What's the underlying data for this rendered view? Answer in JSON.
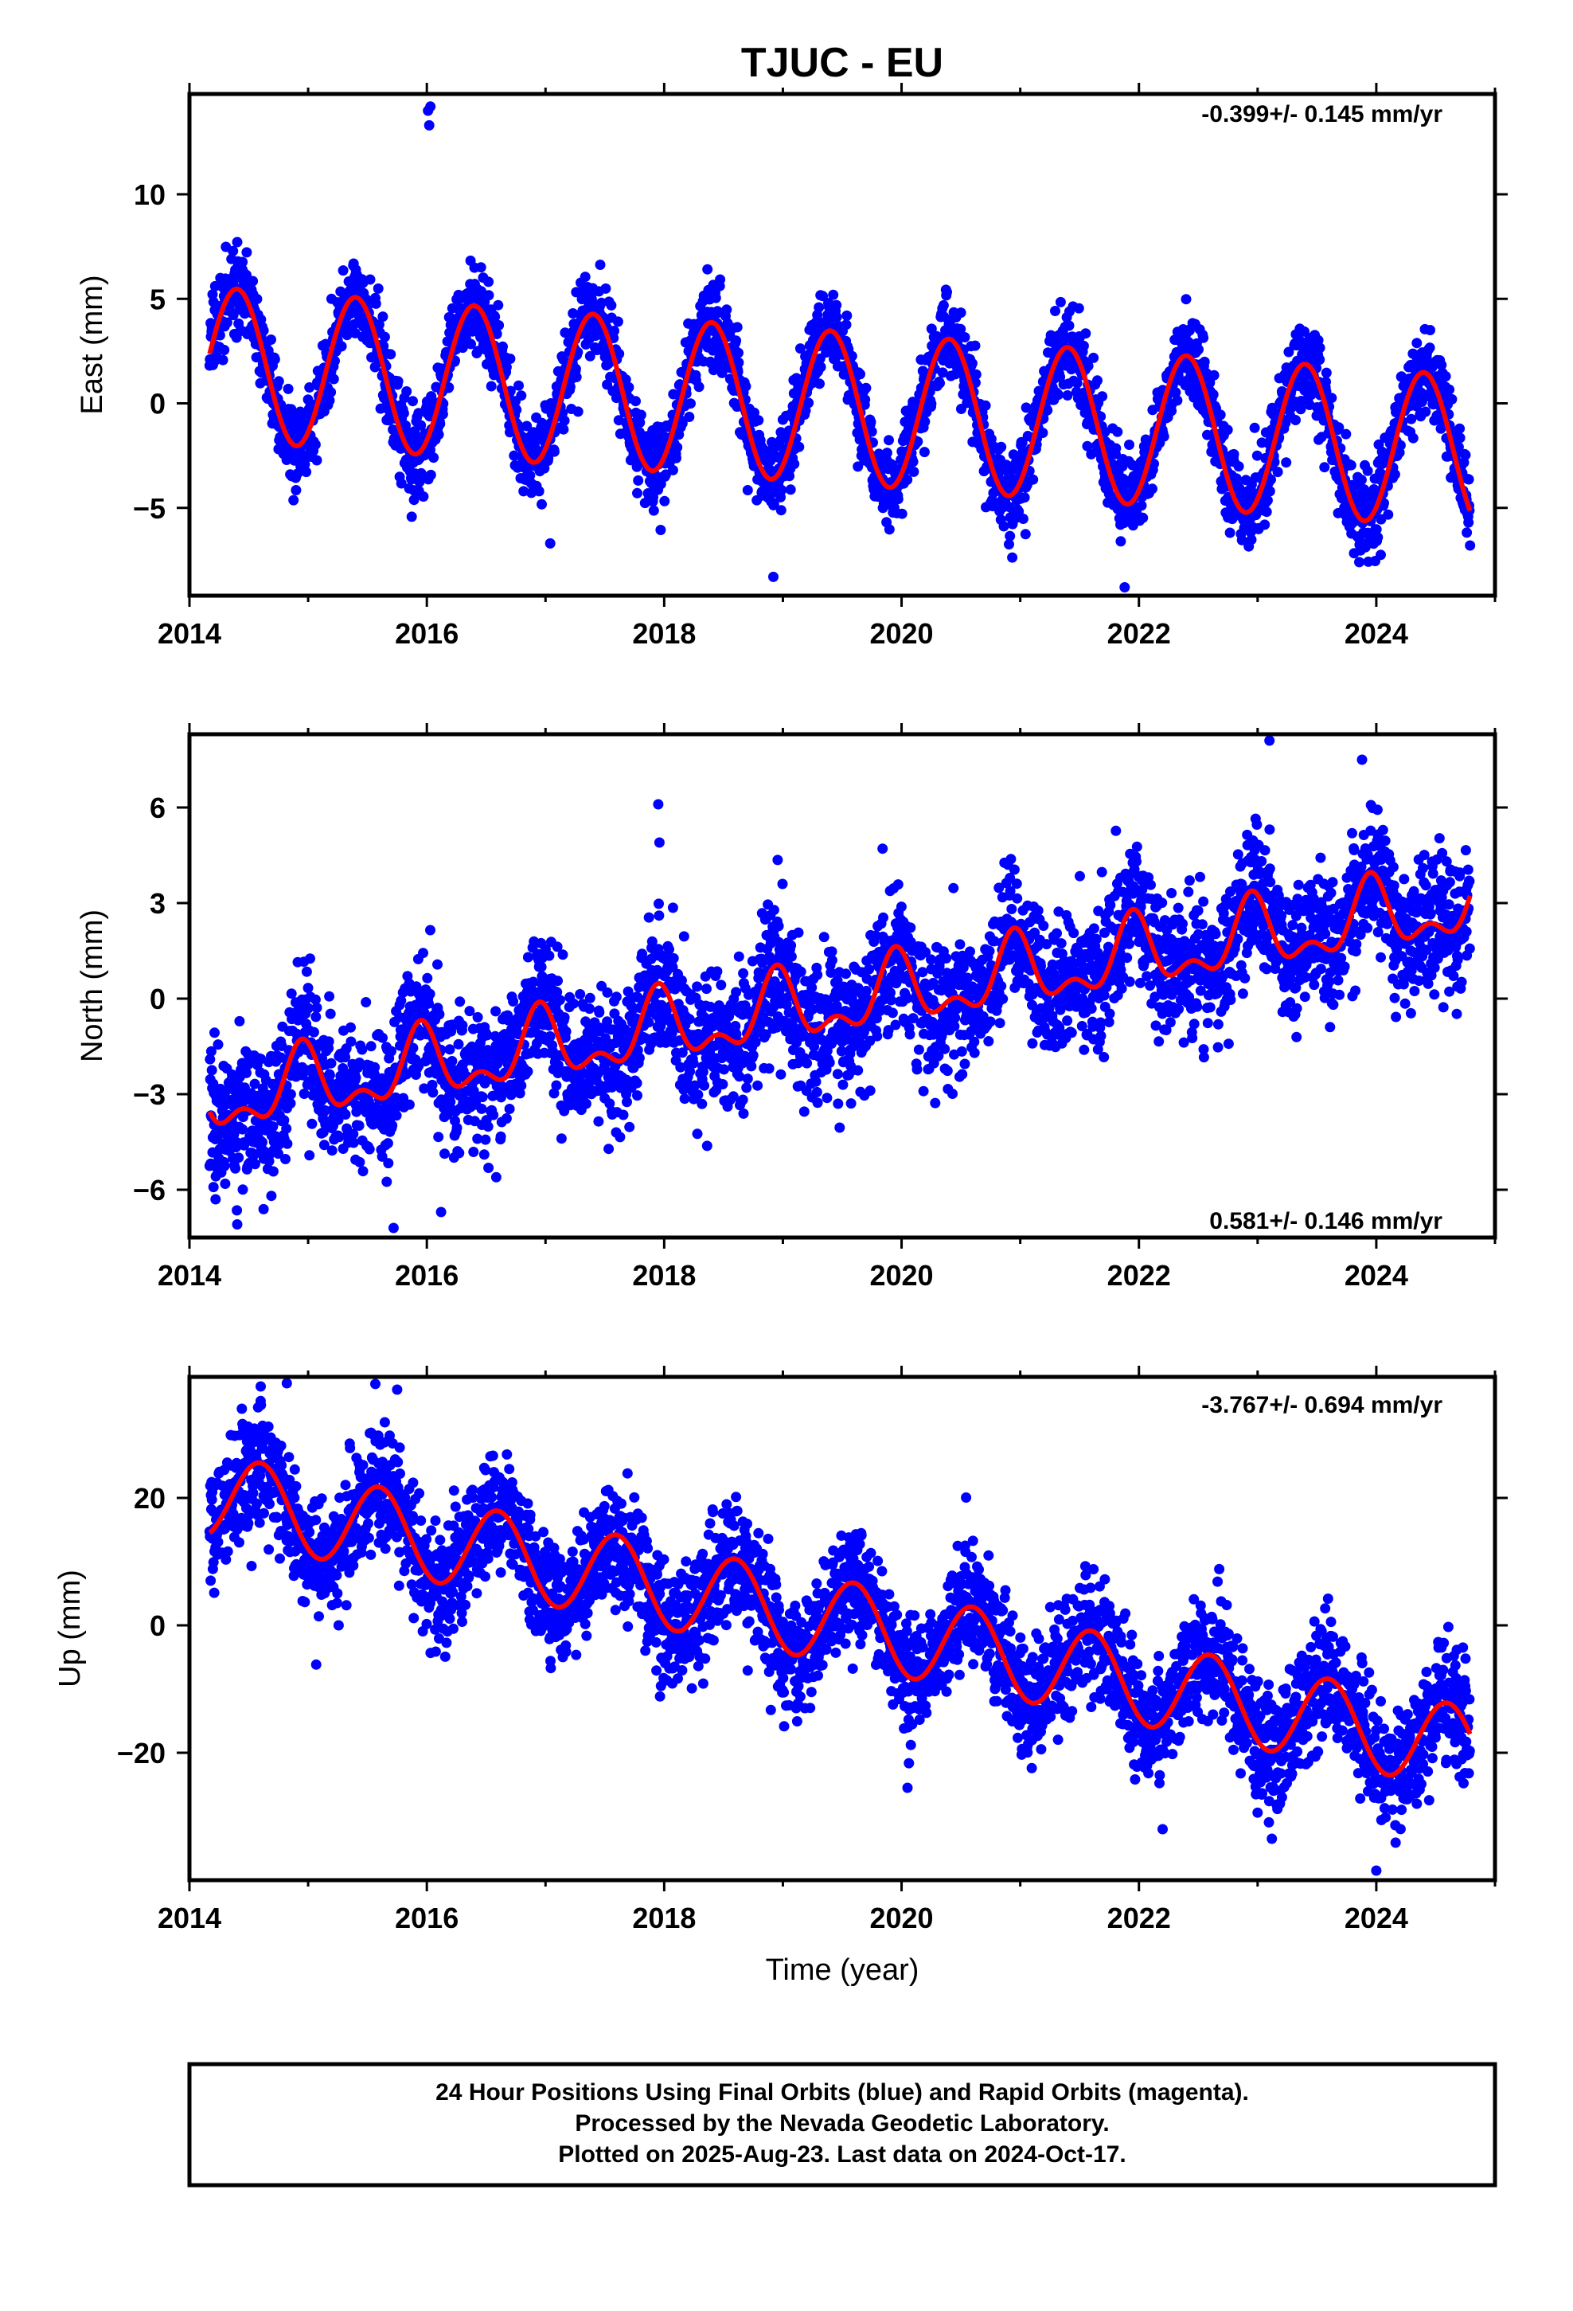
{
  "title": "TJUC - EU",
  "footer": {
    "line1": "24 Hour Positions Using Final Orbits (blue) and Rapid Orbits (magenta).",
    "line2": "Processed by the Nevada Geodetic Laboratory.",
    "line3": "Plotted on 2025-Aug-23. Last data on 2024-Oct-17."
  },
  "colors": {
    "points": "#0000ff",
    "fit": "#ff0000",
    "frame": "#000000"
  },
  "chart_data": [
    {
      "type": "scatter",
      "title": "TJUC - EU",
      "ylabel": "East (mm)",
      "xlabel": "",
      "xlim": [
        2014.0,
        2025.0
      ],
      "ylim": [
        -9.2,
        14.8
      ],
      "xticks": [
        2014,
        2016,
        2018,
        2020,
        2022,
        2024
      ],
      "yticks": [
        -5,
        0,
        5,
        10
      ],
      "ytick_labels": [
        "−5",
        "0",
        "5",
        "10"
      ],
      "rate": "-0.399+/- 0.145 mm/yr",
      "rate_position": "top-right",
      "data_range": [
        2014.17,
        2024.79
      ],
      "series": [
        {
          "role": "points",
          "color": "#0000ff",
          "noise_sd": 1.0,
          "outliers": [
            [
              2016.02,
              13.3
            ],
            [
              2016.03,
              14.2
            ],
            [
              2016.01,
              14.0
            ],
            [
              2017.04,
              -6.7
            ],
            [
              2018.92,
              -8.3
            ],
            [
              2021.88,
              -8.8
            ],
            [
              2024.79,
              -6.8
            ]
          ]
        },
        {
          "role": "fit",
          "color": "#ff0000",
          "model": {
            "t0": 2014.2,
            "offset": 1.9,
            "rate": -0.399,
            "amplitude": 3.65,
            "phase": 2014.4,
            "period": 1.0,
            "semi_amplitude": 0.0,
            "semi_phase": 2014.4
          },
          "annual_peaks": [
            [
              2014.4,
              5.4
            ],
            [
              2015.4,
              5.0
            ],
            [
              2016.4,
              4.6
            ],
            [
              2017.4,
              4.2
            ],
            [
              2018.4,
              3.8
            ],
            [
              2019.4,
              3.4
            ],
            [
              2020.4,
              3.0
            ],
            [
              2021.4,
              2.6
            ],
            [
              2022.4,
              2.2
            ],
            [
              2023.4,
              1.8
            ],
            [
              2024.4,
              1.4
            ]
          ]
        }
      ]
    },
    {
      "type": "scatter",
      "ylabel": "North (mm)",
      "xlabel": "",
      "xlim": [
        2014.0,
        2025.0
      ],
      "ylim": [
        -7.5,
        8.3
      ],
      "xticks": [
        2014,
        2016,
        2018,
        2020,
        2022,
        2024
      ],
      "yticks": [
        -6,
        -3,
        0,
        3,
        6
      ],
      "ytick_labels": [
        "−6",
        "−3",
        "0",
        "3",
        "6"
      ],
      "rate": "0.581+/- 0.146 mm/yr",
      "rate_position": "bottom-right",
      "data_range": [
        2014.17,
        2024.79
      ],
      "series": [
        {
          "role": "points",
          "color": "#0000ff",
          "noise_sd": 1.05,
          "outliers": [
            [
              2017.95,
              6.1
            ],
            [
              2017.96,
              4.9
            ],
            [
              2023.1,
              8.1
            ],
            [
              2023.88,
              7.5
            ],
            [
              2015.72,
              -7.2
            ],
            [
              2016.12,
              -6.7
            ],
            [
              2014.22,
              -6.3
            ]
          ]
        },
        {
          "role": "fit",
          "color": "#ff0000",
          "model": {
            "t0": 2014.2,
            "offset": -3.2,
            "rate": 0.581,
            "amplitude": 0.95,
            "phase": 2014.95,
            "period": 1.0,
            "semi_amplitude": 0.55,
            "semi_phase": 2014.45
          },
          "annual_peaks": [
            [
              2014.95,
              -1.4
            ],
            [
              2015.95,
              -0.8
            ],
            [
              2016.95,
              -0.2
            ],
            [
              2017.95,
              0.3
            ],
            [
              2018.95,
              0.9
            ],
            [
              2019.95,
              1.4
            ],
            [
              2020.95,
              2.0
            ],
            [
              2021.95,
              2.6
            ],
            [
              2022.95,
              3.2
            ],
            [
              2023.95,
              3.8
            ]
          ]
        }
      ]
    },
    {
      "type": "scatter",
      "ylabel": "Up (mm)",
      "xlabel": "Time (year)",
      "xlim": [
        2014.0,
        2025.0
      ],
      "ylim": [
        -40.0,
        39.0
      ],
      "xticks": [
        2014,
        2016,
        2018,
        2020,
        2022,
        2024
      ],
      "yticks": [
        -20,
        0,
        20
      ],
      "ytick_labels": [
        "−20",
        "0",
        "20"
      ],
      "rate": "-3.767+/- 0.694 mm/yr",
      "rate_position": "top-right",
      "data_range": [
        2014.17,
        2024.79
      ],
      "series": [
        {
          "role": "points",
          "color": "#0000ff",
          "noise_sd": 4.6,
          "outliers": [
            [
              2014.6,
              37.5
            ],
            [
              2014.82,
              38.0
            ],
            [
              2015.75,
              37.0
            ],
            [
              2020.05,
              -25.5
            ],
            [
              2022.2,
              -32.0
            ],
            [
              2023.12,
              -33.5
            ],
            [
              2024.0,
              -38.5
            ]
          ]
        },
        {
          "role": "fit",
          "color": "#ff0000",
          "model": {
            "t0": 2014.2,
            "offset": 20.4,
            "rate": -3.767,
            "amplitude": 6.6,
            "phase": 2014.6,
            "period": 1.0,
            "semi_amplitude": 0.0,
            "semi_phase": 2014.6
          },
          "annual_peaks": [
            [
              2014.6,
              26.5
            ],
            [
              2015.6,
              22.7
            ],
            [
              2016.6,
              19.0
            ],
            [
              2017.6,
              15.2
            ],
            [
              2018.6,
              11.4
            ],
            [
              2019.6,
              7.7
            ],
            [
              2020.6,
              3.9
            ],
            [
              2021.6,
              0.2
            ],
            [
              2022.6,
              -3.6
            ],
            [
              2023.6,
              -7.4
            ],
            [
              2024.6,
              -11.1
            ]
          ]
        }
      ]
    }
  ]
}
